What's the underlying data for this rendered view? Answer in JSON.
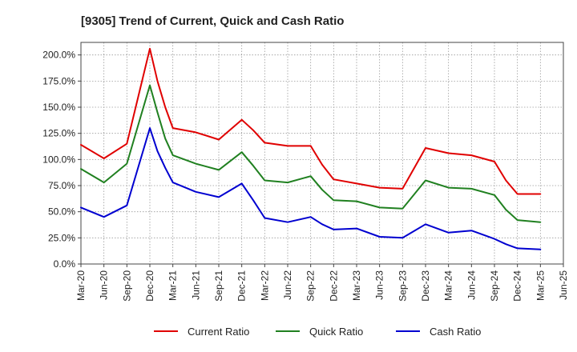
{
  "chart_data": {
    "type": "line",
    "title": "[9305]  Trend of Current, Quick and Cash Ratio",
    "xlabel": "",
    "ylabel": "",
    "ylim": [
      0,
      212
    ],
    "yticks": [
      0,
      25,
      50,
      75,
      100,
      125,
      150,
      175,
      200
    ],
    "ytick_labels": [
      "0.0%",
      "25.0%",
      "50.0%",
      "75.0%",
      "100.0%",
      "125.0%",
      "150.0%",
      "175.0%",
      "200.0%"
    ],
    "x_tick_labels": [
      "Mar-20",
      "Jun-20",
      "Sep-20",
      "Dec-20",
      "Mar-21",
      "Jun-21",
      "Sep-21",
      "Dec-21",
      "Mar-22",
      "Jun-22",
      "Sep-22",
      "Dec-22",
      "Mar-23",
      "Jun-23",
      "Sep-23",
      "Dec-23",
      "Mar-24",
      "Jun-24",
      "Sep-24",
      "Dec-24",
      "Mar-25",
      "Jun-25"
    ],
    "grid": true,
    "legend_position": "bottom",
    "series": [
      {
        "name": "Current Ratio",
        "color": "#e00000",
        "points": [
          [
            0,
            114
          ],
          [
            1,
            101
          ],
          [
            2,
            115
          ],
          [
            3,
            206
          ],
          [
            3.33,
            175
          ],
          [
            3.67,
            150
          ],
          [
            4,
            130
          ],
          [
            5,
            126
          ],
          [
            6,
            119
          ],
          [
            7,
            138
          ],
          [
            7.5,
            128
          ],
          [
            8,
            116
          ],
          [
            9,
            113
          ],
          [
            10,
            113
          ],
          [
            10.5,
            95
          ],
          [
            11,
            81
          ],
          [
            12,
            77
          ],
          [
            13,
            73
          ],
          [
            14,
            72
          ],
          [
            15,
            111
          ],
          [
            16,
            106
          ],
          [
            17,
            104
          ],
          [
            18,
            98
          ],
          [
            18.5,
            80
          ],
          [
            19,
            67
          ],
          [
            20,
            67
          ]
        ]
      },
      {
        "name": "Quick Ratio",
        "color": "#208020",
        "points": [
          [
            0,
            91
          ],
          [
            1,
            78
          ],
          [
            2,
            96
          ],
          [
            3,
            171
          ],
          [
            3.33,
            145
          ],
          [
            3.67,
            120
          ],
          [
            4,
            104
          ],
          [
            5,
            96
          ],
          [
            6,
            90
          ],
          [
            7,
            107
          ],
          [
            7.5,
            94
          ],
          [
            8,
            80
          ],
          [
            9,
            78
          ],
          [
            10,
            84
          ],
          [
            10.5,
            71
          ],
          [
            11,
            61
          ],
          [
            12,
            60
          ],
          [
            13,
            54
          ],
          [
            14,
            53
          ],
          [
            15,
            80
          ],
          [
            16,
            73
          ],
          [
            17,
            72
          ],
          [
            18,
            66
          ],
          [
            18.5,
            52
          ],
          [
            19,
            42
          ],
          [
            20,
            40
          ]
        ]
      },
      {
        "name": "Cash Ratio",
        "color": "#0000d0",
        "points": [
          [
            0,
            54
          ],
          [
            1,
            45
          ],
          [
            2,
            56
          ],
          [
            3,
            130
          ],
          [
            3.33,
            108
          ],
          [
            3.67,
            92
          ],
          [
            4,
            78
          ],
          [
            5,
            69
          ],
          [
            6,
            64
          ],
          [
            7,
            77
          ],
          [
            7.5,
            61
          ],
          [
            8,
            44
          ],
          [
            9,
            40
          ],
          [
            10,
            45
          ],
          [
            10.5,
            38
          ],
          [
            11,
            33
          ],
          [
            12,
            34
          ],
          [
            13,
            26
          ],
          [
            14,
            25
          ],
          [
            15,
            38
          ],
          [
            16,
            30
          ],
          [
            17,
            32
          ],
          [
            18,
            24
          ],
          [
            18.5,
            19
          ],
          [
            19,
            15
          ],
          [
            20,
            14
          ]
        ]
      }
    ]
  }
}
